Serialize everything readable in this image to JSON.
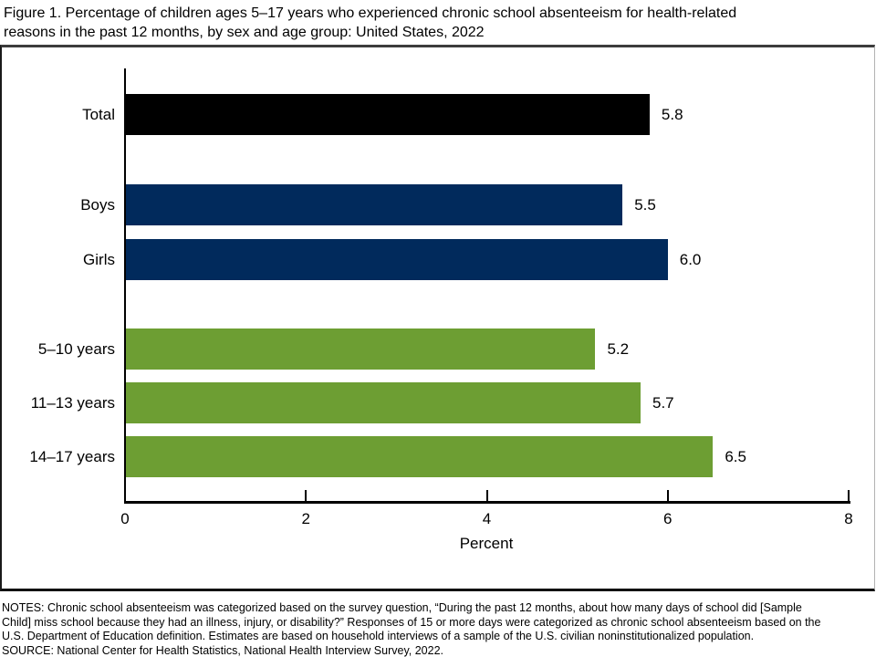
{
  "title_lines": [
    "Figure 1. Percentage of children ages 5–17 years who experienced chronic school absenteeism for health-related",
    "reasons in the past 12 months, by sex and age group: United States, 2022"
  ],
  "chart_data": {
    "type": "bar",
    "orientation": "horizontal",
    "title": "Figure 1. Percentage of children ages 5–17 years who experienced chronic school absenteeism for health-related reasons in the past 12 months, by sex and age group: United States, 2022",
    "categories": [
      "Total",
      "Boys",
      "Girls",
      "5–10 years",
      "11–13 years",
      "14–17 years"
    ],
    "values": [
      5.8,
      5.5,
      6.0,
      5.2,
      5.7,
      6.5
    ],
    "value_labels": [
      "5.8",
      "5.5",
      "6.0",
      "5.2",
      "5.7",
      "6.5"
    ],
    "bar_colors": [
      "#000000",
      "#012a5c",
      "#012a5c",
      "#6d9e33",
      "#6d9e33",
      "#6d9e33"
    ],
    "color_legend": {
      "total": "#000000",
      "sex": "#012a5c",
      "age_group": "#6d9e33"
    },
    "xlabel": "Percent",
    "x_ticks": [
      "0",
      "2",
      "4",
      "6",
      "8"
    ],
    "xlim": [
      0,
      8
    ],
    "grid": false,
    "legend_position": "none"
  },
  "notes_lines": [
    "NOTES: Chronic school absenteeism was categorized based on the survey question, “During the past 12 months, about how many days of school did [Sample",
    "Child] miss school because they had an illness, injury, or disability?” Responses of 15 or more days were categorized as chronic school absenteeism based on the",
    "U.S. Department of Education definition. Estimates are based on household interviews of a sample of the U.S. civilian noninstitutionalized population."
  ],
  "source": "SOURCE: National Center for Health Statistics, National Health Interview Survey, 2022."
}
